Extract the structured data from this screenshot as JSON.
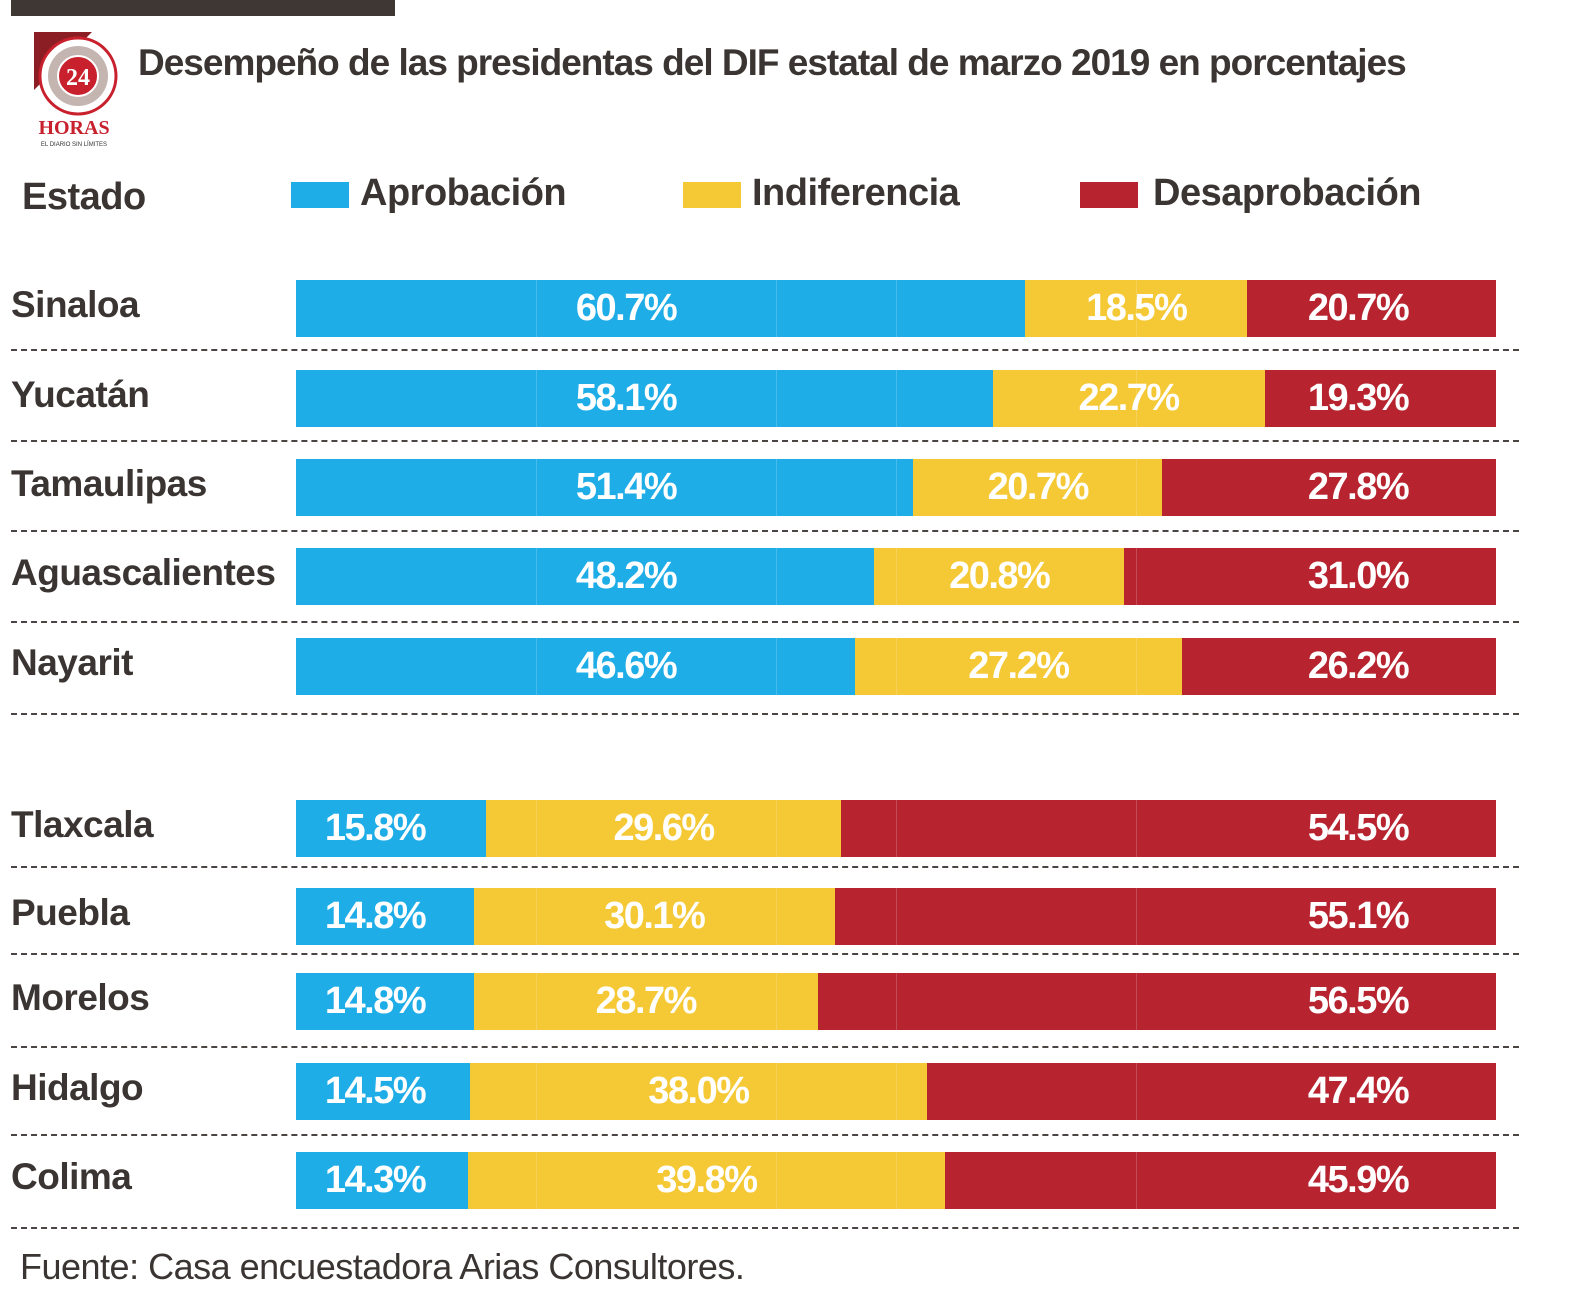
{
  "chart_data": {
    "type": "bar",
    "orientation": "horizontal",
    "stacked": true,
    "title": "Desempeño de las presidentas del DIF estatal de marzo 2019 en porcentajes",
    "category_header": "Estado",
    "legend_placement": "top",
    "categories": [
      "Sinaloa",
      "Yucatán",
      "Tamaulipas",
      "Aguascalientes",
      "Nayarit",
      "Tlaxcala",
      "Puebla",
      "Morelos",
      "Hidalgo",
      "Colima"
    ],
    "series": [
      {
        "name": "Aprobación",
        "color": "#1fade8",
        "values": [
          60.7,
          58.1,
          51.4,
          48.2,
          46.6,
          15.8,
          14.8,
          14.8,
          14.5,
          14.3
        ]
      },
      {
        "name": "Indiferencia",
        "color": "#f5c936",
        "values": [
          18.5,
          22.7,
          20.7,
          20.8,
          27.2,
          29.6,
          30.1,
          28.7,
          38.0,
          39.8
        ]
      },
      {
        "name": "Desaprobación",
        "color": "#b72430",
        "values": [
          20.7,
          19.3,
          27.8,
          31.0,
          26.2,
          54.5,
          55.1,
          56.5,
          47.4,
          45.9
        ]
      }
    ],
    "labels": [
      [
        "60.7%",
        "18.5%",
        "20.7%"
      ],
      [
        "58.1%",
        "22.7%",
        "19.3%"
      ],
      [
        "51.4%",
        "20.7%",
        "27.8%"
      ],
      [
        "48.2%",
        "20.8%",
        "31.0%"
      ],
      [
        "46.6%",
        "27.2%",
        "26.2%"
      ],
      [
        "15.8%",
        "29.6%",
        "54.5%"
      ],
      [
        "14.8%",
        "30.1%",
        "55.1%"
      ],
      [
        "14.8%",
        "28.7%",
        "56.5%"
      ],
      [
        "14.5%",
        "38.0%",
        "47.4%"
      ],
      [
        "14.3%",
        "39.8%",
        "45.9%"
      ]
    ],
    "xlim": [
      0,
      100
    ]
  },
  "logo": {
    "text": "24 HORAS",
    "tagline": "EL DIARIO SIN LÍMITES"
  },
  "source": "Fuente: Casa encuestadora Arias Consultores."
}
